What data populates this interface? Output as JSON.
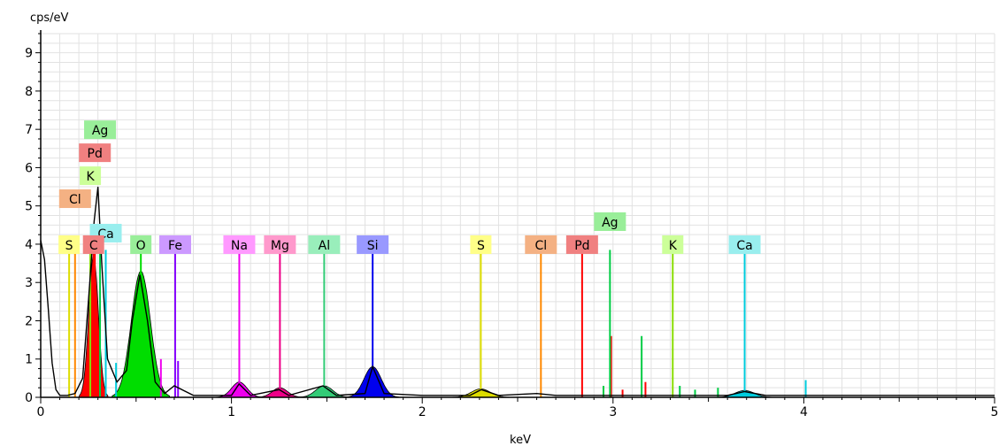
{
  "chart_data": {
    "type": "line",
    "title": "",
    "ylabel": "cps/eV",
    "xlabel": "keV",
    "xlim": [
      0,
      5
    ],
    "ylim": [
      0,
      9.5
    ],
    "x_ticks": [
      "0",
      "1",
      "2",
      "3",
      "4",
      "5"
    ],
    "y_ticks": [
      "0",
      "1",
      "2",
      "3",
      "4",
      "5",
      "6",
      "7",
      "8",
      "9"
    ],
    "grid": true,
    "spectrum": {
      "color": "#000000",
      "points": [
        [
          0.0,
          4.1
        ],
        [
          0.02,
          3.6
        ],
        [
          0.04,
          2.3
        ],
        [
          0.06,
          0.9
        ],
        [
          0.08,
          0.2
        ],
        [
          0.1,
          0.05
        ],
        [
          0.14,
          0.05
        ],
        [
          0.18,
          0.1
        ],
        [
          0.22,
          0.5
        ],
        [
          0.25,
          2.5
        ],
        [
          0.28,
          4.6
        ],
        [
          0.3,
          5.5
        ],
        [
          0.32,
          3.5
        ],
        [
          0.35,
          1.0
        ],
        [
          0.4,
          0.4
        ],
        [
          0.45,
          0.7
        ],
        [
          0.48,
          2.0
        ],
        [
          0.52,
          3.2
        ],
        [
          0.56,
          2.0
        ],
        [
          0.6,
          0.4
        ],
        [
          0.65,
          0.1
        ],
        [
          0.7,
          0.3
        ],
        [
          0.8,
          0.05
        ],
        [
          1.0,
          0.05
        ],
        [
          1.04,
          0.35
        ],
        [
          1.1,
          0.05
        ],
        [
          1.25,
          0.2
        ],
        [
          1.3,
          0.05
        ],
        [
          1.48,
          0.3
        ],
        [
          1.55,
          0.05
        ],
        [
          1.7,
          0.1
        ],
        [
          1.74,
          0.8
        ],
        [
          1.8,
          0.1
        ],
        [
          2.0,
          0.05
        ],
        [
          2.25,
          0.05
        ],
        [
          2.31,
          0.2
        ],
        [
          2.4,
          0.05
        ],
        [
          2.6,
          0.1
        ],
        [
          2.7,
          0.05
        ],
        [
          3.6,
          0.05
        ],
        [
          3.69,
          0.15
        ],
        [
          3.8,
          0.05
        ],
        [
          5.0,
          0.05
        ]
      ]
    },
    "peaks": [
      {
        "element": "O",
        "energy": 0.525,
        "height": 3.3,
        "width": 0.05,
        "color": "#00dd00"
      },
      {
        "element": "Na",
        "energy": 1.041,
        "height": 0.4,
        "width": 0.04,
        "color": "#ee00ee"
      },
      {
        "element": "Mg",
        "energy": 1.254,
        "height": 0.25,
        "width": 0.04,
        "color": "#ee0088"
      },
      {
        "element": "Al",
        "energy": 1.486,
        "height": 0.3,
        "width": 0.045,
        "color": "#33cc77"
      },
      {
        "element": "Si",
        "energy": 1.74,
        "height": 0.8,
        "width": 0.045,
        "color": "#0000ee"
      },
      {
        "element": "S",
        "energy": 2.307,
        "height": 0.22,
        "width": 0.05,
        "color": "#dddd00"
      },
      {
        "element": "Ca",
        "energy": 3.69,
        "height": 0.18,
        "width": 0.05,
        "color": "#00ccdd"
      },
      {
        "element": "C",
        "energy": 0.277,
        "height": 3.7,
        "width": 0.025,
        "color": "#ff0000"
      }
    ],
    "element_lines": [
      {
        "element": "Ag",
        "energy": 0.311,
        "label_y": 7.0,
        "color": "#00cc44",
        "label_bg": "#99ee99"
      },
      {
        "element": "Pd",
        "energy": 0.284,
        "label_y": 6.4,
        "color": "#ff0000",
        "label_bg": "#f08080"
      },
      {
        "element": "K",
        "energy": 0.26,
        "label_y": 5.8,
        "color": "#88dd00",
        "label_bg": "#ccff99"
      },
      {
        "element": "Cl",
        "energy": 0.18,
        "label_y": 5.2,
        "color": "#ff8800",
        "label_bg": "#f4b183"
      },
      {
        "element": "Ca",
        "energy": 0.341,
        "label_y": 4.3,
        "color": "#00ccdd",
        "label_bg": "#99eeee"
      },
      {
        "element": "S",
        "energy": 0.149,
        "label_y": 4.0,
        "color": "#dddd00",
        "label_bg": "#ffff88"
      },
      {
        "element": "C",
        "energy": 0.277,
        "label_y": 4.0,
        "color": "#ff0000",
        "label_bg": "#f08080"
      },
      {
        "element": "O",
        "energy": 0.525,
        "label_y": 4.0,
        "color": "#00dd00",
        "label_bg": "#99ee99"
      },
      {
        "element": "Fe",
        "energy": 0.705,
        "label_y": 4.0,
        "color": "#8800ff",
        "label_bg": "#cc99ff"
      },
      {
        "element": "Na",
        "energy": 1.041,
        "label_y": 4.0,
        "color": "#ee00ee",
        "label_bg": "#ff99ff"
      },
      {
        "element": "Mg",
        "energy": 1.254,
        "label_y": 4.0,
        "color": "#ee0088",
        "label_bg": "#ff99cc"
      },
      {
        "element": "Al",
        "energy": 1.486,
        "label_y": 4.0,
        "color": "#33cc77",
        "label_bg": "#99eebb"
      },
      {
        "element": "Si",
        "energy": 1.74,
        "label_y": 4.0,
        "color": "#0000ee",
        "label_bg": "#9999ff"
      },
      {
        "element": "S",
        "energy": 2.307,
        "label_y": 4.0,
        "color": "#dddd00",
        "label_bg": "#ffff88"
      },
      {
        "element": "Cl",
        "energy": 2.622,
        "label_y": 4.0,
        "color": "#ff8800",
        "label_bg": "#f4b183"
      },
      {
        "element": "Pd",
        "energy": 2.838,
        "label_y": 4.0,
        "color": "#ff0000",
        "label_bg": "#f08080"
      },
      {
        "element": "Ag",
        "energy": 2.984,
        "label_y": 4.6,
        "color": "#00cc44",
        "label_bg": "#99ee99"
      },
      {
        "element": "K",
        "energy": 3.313,
        "label_y": 4.0,
        "color": "#88dd00",
        "label_bg": "#ccff99"
      },
      {
        "element": "Ca",
        "energy": 3.69,
        "label_y": 4.0,
        "color": "#00ccdd",
        "label_bg": "#99eeee"
      }
    ],
    "minor_lines": [
      {
        "energy": 0.395,
        "height": 0.9,
        "color": "#00ccdd"
      },
      {
        "energy": 0.63,
        "height": 1.0,
        "color": "#ee00ee"
      },
      {
        "energy": 0.72,
        "height": 0.95,
        "color": "#8800ff"
      },
      {
        "energy": 2.95,
        "height": 0.3,
        "color": "#00cc44"
      },
      {
        "energy": 2.99,
        "height": 1.6,
        "color": "#ff0000"
      },
      {
        "energy": 3.05,
        "height": 0.2,
        "color": "#ff0000"
      },
      {
        "energy": 3.15,
        "height": 1.6,
        "color": "#00cc44"
      },
      {
        "energy": 3.17,
        "height": 0.4,
        "color": "#ff0000"
      },
      {
        "energy": 3.35,
        "height": 0.3,
        "color": "#00cc44"
      },
      {
        "energy": 3.43,
        "height": 0.2,
        "color": "#00cc44"
      },
      {
        "energy": 3.55,
        "height": 0.25,
        "color": "#00cc44"
      },
      {
        "energy": 4.01,
        "height": 0.45,
        "color": "#00ccdd"
      }
    ]
  }
}
